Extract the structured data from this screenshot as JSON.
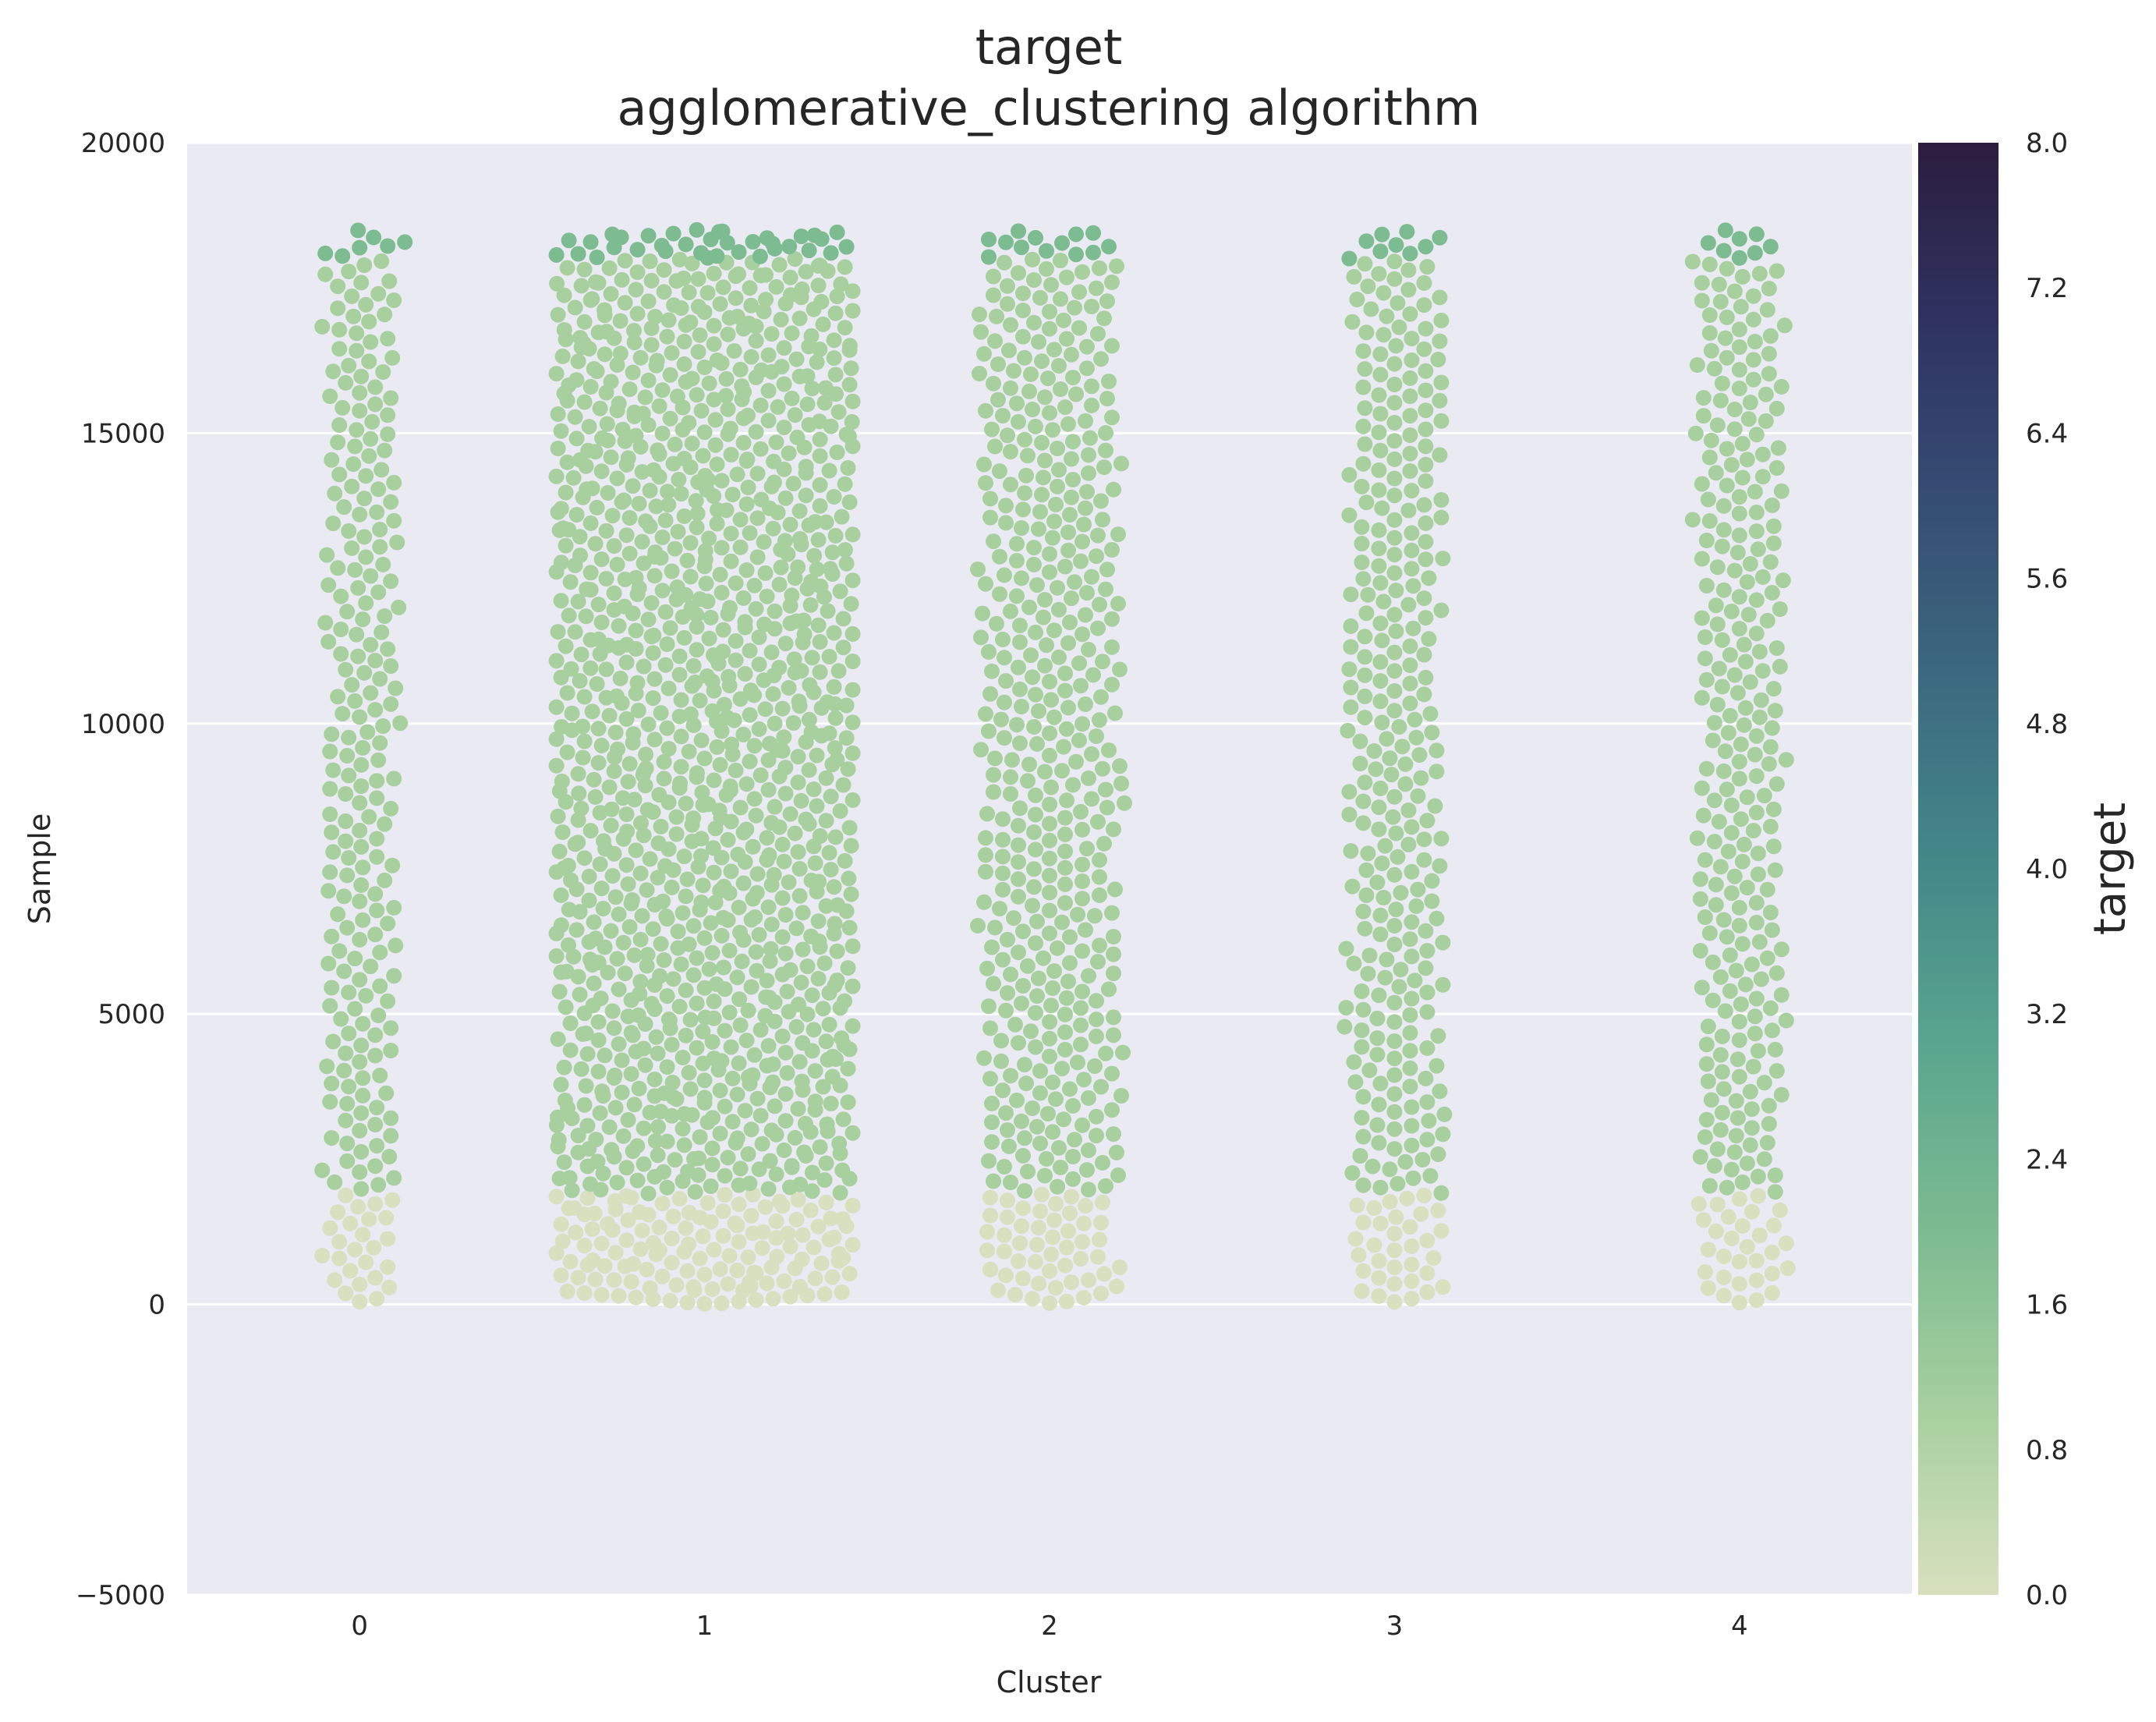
{
  "chart_data": {
    "type": "scatter",
    "subtype": "swarm",
    "title": "target",
    "subtitle": "agglomerative_clustering algorithm",
    "xlabel": "Cluster",
    "ylabel": "Sample",
    "categories": [
      "0",
      "1",
      "2",
      "3",
      "4"
    ],
    "ylim": [
      -5000,
      20000
    ],
    "yticks": [
      -5000,
      0,
      5000,
      10000,
      15000,
      20000
    ],
    "ytick_labels": [
      "−5000",
      "0",
      "5000",
      "10000",
      "15000",
      "20000"
    ],
    "grid": true,
    "background_color": "#eaeaf2",
    "colorbar": {
      "label": "target",
      "range": [
        0.0,
        8.0
      ],
      "ticks": [
        "0.0",
        "0.8",
        "1.6",
        "2.4",
        "3.2",
        "4.0",
        "4.8",
        "5.6",
        "6.4",
        "7.2",
        "8.0"
      ],
      "colormap_stops": [
        "#d8e0bf",
        "#a7d09e",
        "#7dbb91",
        "#5aa68e",
        "#448989",
        "#3c6b80",
        "#364e74",
        "#2f3362",
        "#2b1d3e"
      ]
    },
    "series": [
      {
        "name": "0",
        "approx_count": 250,
        "y_min": 0,
        "y_max": 18500,
        "segments": [
          {
            "y_from": 0,
            "y_to": 1900,
            "target": 0
          },
          {
            "y_from": 1900,
            "y_to": 18000,
            "target": 1
          },
          {
            "y_from": 18000,
            "y_to": 18500,
            "target": 2
          }
        ]
      },
      {
        "name": "1",
        "approx_count": 1350,
        "y_min": 0,
        "y_max": 18500,
        "segments": [
          {
            "y_from": 0,
            "y_to": 1900,
            "target": 0
          },
          {
            "y_from": 1900,
            "y_to": 18000,
            "target": 1
          },
          {
            "y_from": 18000,
            "y_to": 18500,
            "target": 2
          }
        ]
      },
      {
        "name": "2",
        "approx_count": 500,
        "y_min": 0,
        "y_max": 18500,
        "segments": [
          {
            "y_from": 0,
            "y_to": 1900,
            "target": 0
          },
          {
            "y_from": 1900,
            "y_to": 18000,
            "target": 1
          },
          {
            "y_from": 18000,
            "y_to": 18500,
            "target": 2
          }
        ]
      },
      {
        "name": "3",
        "approx_count": 330,
        "y_min": 0,
        "y_max": 18500,
        "segments": [
          {
            "y_from": 0,
            "y_to": 1900,
            "target": 0
          },
          {
            "y_from": 1900,
            "y_to": 18000,
            "target": 1
          },
          {
            "y_from": 18000,
            "y_to": 18500,
            "target": 2
          }
        ]
      },
      {
        "name": "4",
        "approx_count": 300,
        "y_min": 0,
        "y_max": 18500,
        "segments": [
          {
            "y_from": 0,
            "y_to": 1900,
            "target": 0
          },
          {
            "y_from": 1900,
            "y_to": 18000,
            "target": 1
          },
          {
            "y_from": 18000,
            "y_to": 18500,
            "target": 2
          }
        ]
      }
    ]
  }
}
